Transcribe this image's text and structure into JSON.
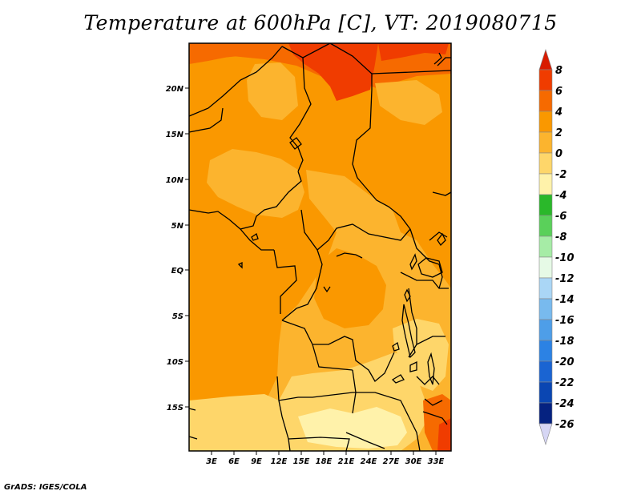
{
  "title": "Temperature at 600hPa [C], VT: 2019080715",
  "footer": "GrADS: IGES/COLA",
  "lat_ticks": [
    "20N",
    "15N",
    "10N",
    "5N",
    "EQ",
    "5S",
    "10S",
    "15S"
  ],
  "lon_ticks": [
    "3E",
    "6E",
    "9E",
    "12E",
    "15E",
    "18E",
    "21E",
    "24E",
    "27E",
    "30E",
    "33E"
  ],
  "colorbar_labels": [
    "8",
    "6",
    "4",
    "2",
    "0",
    "-2",
    "-4",
    "-6",
    "-8",
    "-10",
    "-12",
    "-14",
    "-16",
    "-18",
    "-20",
    "-22",
    "-24",
    "-26"
  ],
  "colors": {
    "c_above8": "#d81c00",
    "c_6_8": "#f03c00",
    "c_4_6": "#f66a00",
    "c_2_4": "#fa9800",
    "c_0_2": "#fcb42e",
    "c_m2_0": "#fed66a",
    "c_m4_m2": "#fff2aa",
    "c_m6_m4": "#2ab82a",
    "c_m8_m6": "#5ad05a",
    "c_m10_m8": "#a6eca6",
    "c_m12_m10": "#e6fae6",
    "c_m14_m12": "#aad6f6",
    "c_m16_m14": "#78baee",
    "c_m18_m16": "#4e9ee8",
    "c_m20_m18": "#2c82e4",
    "c_m22_m20": "#1a64d2",
    "c_m24_m22": "#0a46b2",
    "c_m26_m24": "#052280",
    "c_below": "#d6d6f4",
    "border": "#000000"
  }
}
